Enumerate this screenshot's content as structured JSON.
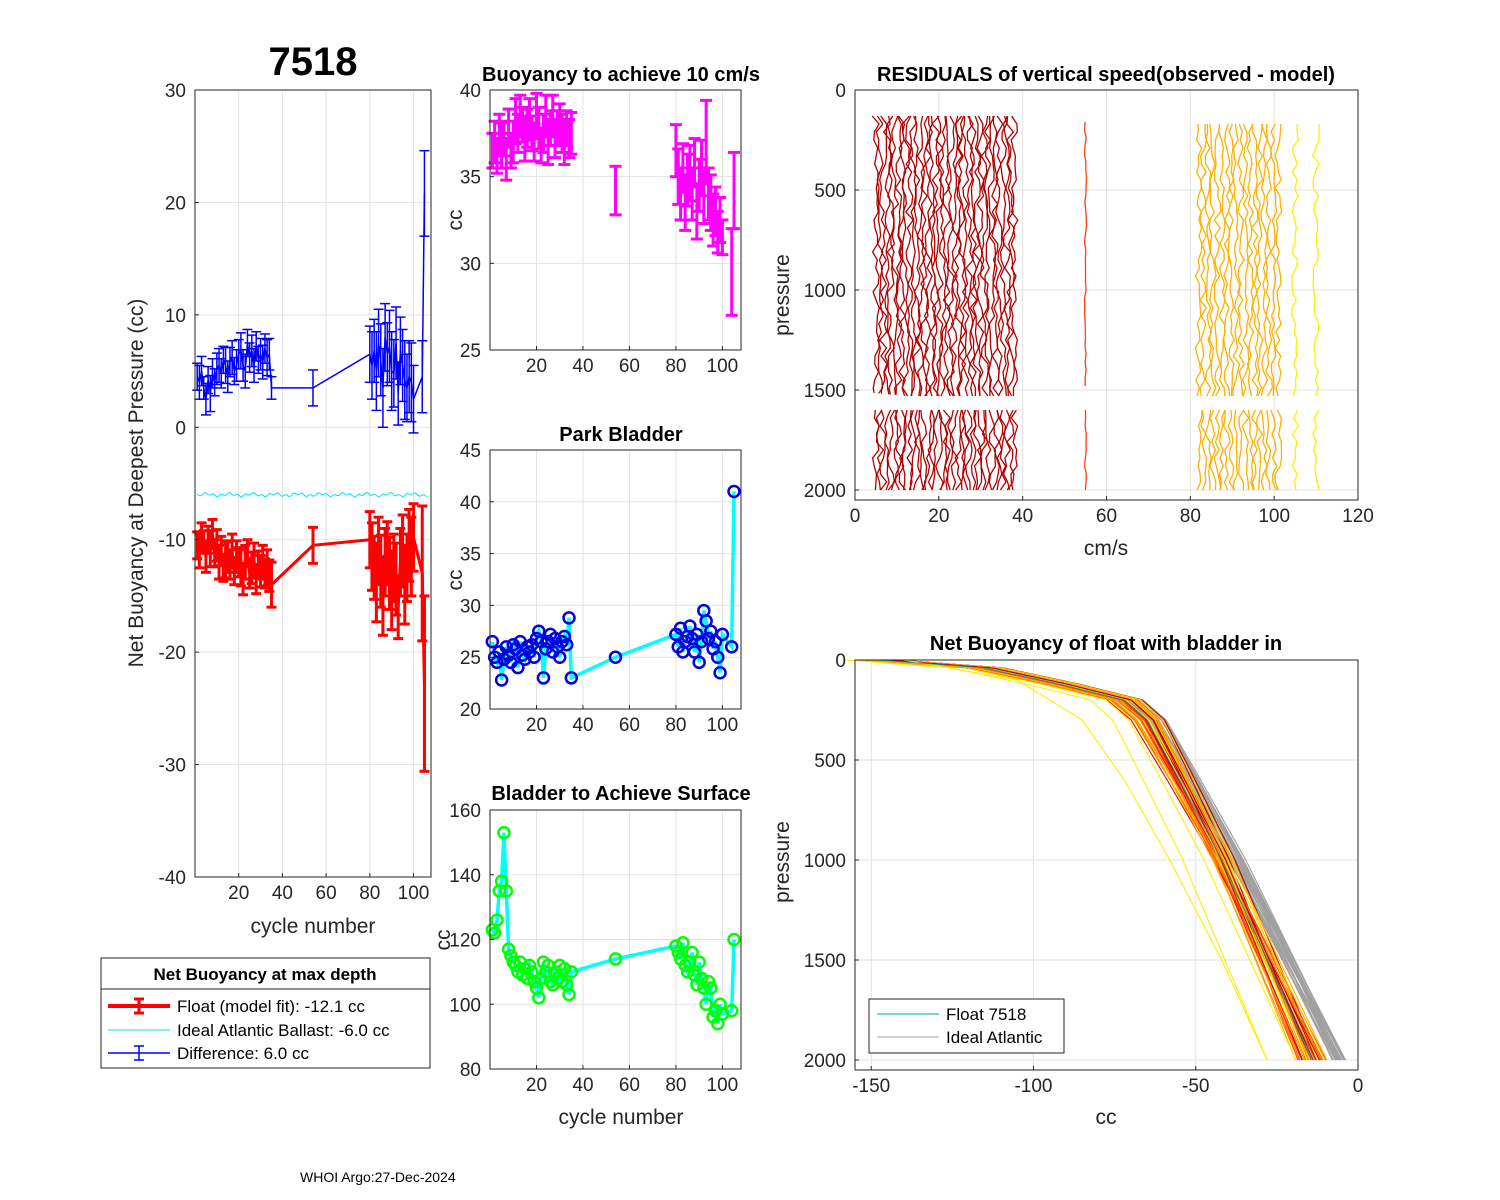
{
  "figure": {
    "float_id": "7518",
    "footer": "WHOI Argo:27-Dec-2024"
  },
  "colors": {
    "red": "#ff0000",
    "blue": "#0000ff",
    "cyan": "#00ffff",
    "magenta": "#ff00ff",
    "green": "#00ff00",
    "gray": "#a0a0a0"
  },
  "chart_data": [
    {
      "id": "net_buoyancy",
      "type": "line",
      "title": "7518",
      "xlabel": "cycle number",
      "ylabel": "Net Buoyancy at Deepest Pressure (cc)",
      "xlim": [
        0,
        108
      ],
      "ylim": [
        -40,
        30
      ],
      "xticks": [
        20,
        40,
        60,
        80,
        100
      ],
      "yticks": [
        -40,
        -30,
        -20,
        -10,
        0,
        10,
        20,
        30
      ],
      "cycles": [
        1,
        2,
        3,
        4,
        5,
        6,
        7,
        8,
        9,
        10,
        11,
        12,
        13,
        14,
        15,
        16,
        17,
        18,
        19,
        20,
        21,
        22,
        23,
        24,
        25,
        26,
        27,
        28,
        29,
        30,
        31,
        32,
        33,
        34,
        35,
        54,
        80,
        81,
        82,
        83,
        84,
        85,
        86,
        87,
        88,
        89,
        90,
        91,
        92,
        93,
        94,
        95,
        96,
        97,
        98,
        99,
        100,
        104,
        105
      ],
      "float_model_fit": [
        -10.5,
        -11.0,
        -9.8,
        -10.2,
        -11.5,
        -10.0,
        -10.8,
        -9.5,
        -11.2,
        -10.5,
        -12.0,
        -11.0,
        -12.5,
        -11.8,
        -11.5,
        -12.2,
        -11.0,
        -12.8,
        -11.5,
        -12.0,
        -12.5,
        -13.5,
        -12.0,
        -11.2,
        -13.0,
        -12.5,
        -11.8,
        -13.5,
        -12.2,
        -12.8,
        -12.0,
        -13.0,
        -12.5,
        -13.2,
        -14.0,
        -10.5,
        -10.0,
        -11.5,
        -12.5,
        -13.8,
        -11.0,
        -12.8,
        -15.0,
        -12.0,
        -11.2,
        -13.0,
        -14.5,
        -12.5,
        -13.5,
        -16.0,
        -12.0,
        -11.0,
        -14.0,
        -12.5,
        -10.5,
        -11.5,
        -9.8,
        -13.0,
        -22.8
      ],
      "float_error": [
        1.2,
        1.5,
        1.3,
        1.0,
        1.4,
        1.2,
        1.6,
        1.3,
        1.2,
        1.4,
        1.5,
        1.3,
        1.2,
        1.6,
        1.4,
        1.3,
        1.5,
        1.2,
        1.4,
        1.3,
        1.6,
        1.4,
        1.5,
        1.2,
        1.3,
        1.4,
        1.5,
        1.3,
        1.2,
        1.4,
        1.5,
        1.3,
        1.6,
        1.4,
        2.0,
        1.6,
        2.5,
        3.0,
        2.8,
        3.5,
        3.0,
        3.2,
        3.5,
        3.0,
        2.8,
        3.2,
        3.5,
        3.0,
        3.2,
        2.8,
        3.0,
        3.2,
        3.5,
        3.0,
        3.2,
        3.5,
        3.0,
        6.0,
        7.8
      ],
      "ideal_atlantic": -6.0,
      "difference": [
        4.5,
        4.0,
        5.0,
        3.5,
        2.5,
        4.2,
        3.0,
        4.8,
        4.0,
        5.2,
        5.5,
        4.8,
        6.0,
        5.5,
        4.5,
        5.8,
        6.2,
        5.0,
        5.5,
        6.5,
        6.8,
        5.5,
        5.0,
        7.5,
        6.2,
        6.8,
        5.5,
        7.2,
        6.0,
        6.5,
        5.8,
        7.0,
        6.2,
        6.5,
        3.5,
        3.5,
        6.5,
        5.5,
        6.8,
        5.0,
        7.5,
        6.0,
        3.5,
        8.0,
        6.5,
        7.2,
        5.0,
        4.8,
        7.5,
        3.0,
        6.8,
        5.5,
        4.2,
        3.5,
        4.5,
        4.0,
        2.5,
        4.5,
        20.8
      ],
      "difference_error": [
        1.2,
        1.5,
        1.3,
        1.0,
        1.4,
        1.2,
        1.6,
        1.3,
        1.2,
        1.4,
        1.5,
        1.3,
        1.2,
        1.6,
        1.4,
        1.3,
        1.5,
        1.2,
        1.4,
        1.3,
        1.6,
        1.4,
        1.5,
        1.2,
        1.3,
        1.4,
        1.5,
        1.3,
        1.2,
        1.4,
        1.5,
        1.3,
        1.6,
        1.4,
        1.0,
        1.6,
        2.5,
        3.0,
        2.8,
        3.5,
        3.0,
        3.2,
        3.5,
        3.0,
        2.8,
        3.2,
        3.5,
        3.0,
        3.2,
        2.8,
        3.0,
        3.2,
        3.5,
        3.0,
        3.2,
        3.5,
        3.0,
        3.2,
        3.8
      ],
      "legend": {
        "title": "Net Buoyancy at max depth",
        "entries": [
          "Float (model fit): -12.1 cc",
          "Ideal Atlantic Ballast:  -6.0 cc",
          "Difference:   6.0 cc"
        ]
      }
    },
    {
      "id": "buoyancy_10cms",
      "type": "scatter",
      "title": "Buoyancy to achieve 10 cm/s",
      "xlabel": "",
      "ylabel": "cc",
      "xlim": [
        0,
        108
      ],
      "ylim": [
        25,
        40
      ],
      "xticks": [
        20,
        40,
        60,
        80,
        100
      ],
      "yticks": [
        25,
        30,
        35,
        40
      ],
      "cycles": [
        1,
        2,
        3,
        4,
        5,
        6,
        7,
        8,
        9,
        10,
        11,
        12,
        13,
        14,
        15,
        16,
        17,
        18,
        19,
        20,
        21,
        22,
        23,
        24,
        25,
        26,
        27,
        28,
        29,
        30,
        31,
        32,
        33,
        34,
        35,
        54,
        80,
        81,
        82,
        83,
        84,
        85,
        86,
        87,
        88,
        89,
        90,
        91,
        92,
        93,
        94,
        95,
        96,
        97,
        98,
        99,
        100,
        104,
        105
      ],
      "values": [
        36.5,
        37.0,
        36.2,
        37.5,
        36.8,
        37.2,
        36.0,
        37.8,
        36.5,
        37.0,
        38.2,
        37.5,
        38.5,
        38.0,
        37.2,
        37.8,
        38.3,
        37.5,
        37.0,
        38.5,
        37.8,
        36.8,
        37.5,
        38.5,
        37.0,
        37.8,
        38.5,
        37.2,
        37.8,
        38.0,
        37.5,
        37.0,
        37.8,
        37.2,
        37.5,
        34.2,
        36.5,
        35.0,
        34.0,
        35.5,
        33.5,
        34.8,
        35.2,
        34.0,
        35.8,
        33.0,
        34.5,
        35.5,
        33.8,
        37.0,
        34.0,
        33.5,
        32.5,
        33.0,
        31.8,
        32.5,
        31.5,
        29.5,
        34.2
      ],
      "error": [
        1.0,
        1.2,
        1.0,
        1.1,
        1.3,
        1.0,
        1.2,
        1.1,
        1.0,
        1.2,
        1.3,
        1.1,
        1.2,
        1.0,
        1.3,
        1.1,
        1.2,
        1.0,
        1.1,
        1.3,
        1.2,
        1.0,
        1.1,
        1.2,
        1.3,
        1.0,
        1.2,
        1.1,
        1.0,
        1.2,
        1.1,
        1.3,
        1.0,
        1.1,
        1.2,
        1.4,
        1.5,
        1.6,
        1.5,
        1.4,
        1.6,
        1.5,
        1.6,
        1.5,
        1.4,
        1.6,
        1.5,
        1.6,
        1.5,
        2.4,
        1.5,
        1.6,
        1.5,
        1.4,
        1.2,
        1.3,
        1.0,
        2.5,
        2.2
      ]
    },
    {
      "id": "park_bladder",
      "type": "line",
      "title": "Park Bladder",
      "xlabel": "",
      "ylabel": "cc",
      "xlim": [
        0,
        108
      ],
      "ylim": [
        20,
        45
      ],
      "xticks": [
        20,
        40,
        60,
        80,
        100
      ],
      "yticks": [
        20,
        25,
        30,
        35,
        40,
        45
      ],
      "cycles": [
        1,
        2,
        3,
        4,
        5,
        6,
        7,
        8,
        9,
        10,
        11,
        12,
        13,
        14,
        15,
        16,
        17,
        18,
        19,
        20,
        21,
        22,
        23,
        24,
        25,
        26,
        27,
        28,
        29,
        30,
        31,
        32,
        33,
        34,
        35,
        54,
        80,
        81,
        82,
        83,
        84,
        85,
        86,
        87,
        88,
        89,
        90,
        91,
        92,
        93,
        94,
        95,
        96,
        97,
        98,
        99,
        100,
        104,
        105
      ],
      "values": [
        26.5,
        25.0,
        24.5,
        25.5,
        22.8,
        24.8,
        26.0,
        25.2,
        24.5,
        26.2,
        25.8,
        24.0,
        26.5,
        25.2,
        24.8,
        26.0,
        25.5,
        26.2,
        25.0,
        26.8,
        27.5,
        26.5,
        23.0,
        25.8,
        26.5,
        27.2,
        25.5,
        26.8,
        26.0,
        25.0,
        26.5,
        27.0,
        26.2,
        28.8,
        23.0,
        25.0,
        27.2,
        26.0,
        27.8,
        25.5,
        26.5,
        27.0,
        28.0,
        26.8,
        25.5,
        27.2,
        24.5,
        26.5,
        29.5,
        28.5,
        26.8,
        27.5,
        25.8,
        26.5,
        25.0,
        23.5,
        27.2,
        26.0,
        41.0
      ]
    },
    {
      "id": "bladder_surface",
      "type": "line",
      "title": "Bladder to Achieve Surface",
      "xlabel": "cycle number",
      "ylabel": "cc",
      "xlim": [
        0,
        108
      ],
      "ylim": [
        80,
        160
      ],
      "xticks": [
        20,
        40,
        60,
        80,
        100
      ],
      "yticks": [
        80,
        100,
        120,
        140,
        160
      ],
      "cycles": [
        1,
        2,
        3,
        4,
        5,
        6,
        7,
        8,
        9,
        10,
        11,
        12,
        13,
        14,
        15,
        16,
        17,
        18,
        19,
        20,
        21,
        22,
        23,
        24,
        25,
        26,
        27,
        28,
        29,
        30,
        31,
        32,
        33,
        34,
        35,
        54,
        80,
        81,
        82,
        83,
        84,
        85,
        86,
        87,
        88,
        89,
        90,
        91,
        92,
        93,
        94,
        95,
        96,
        97,
        98,
        99,
        100,
        104,
        105
      ],
      "values": [
        123,
        122,
        126,
        135,
        138,
        153,
        135,
        117,
        115,
        113,
        112,
        110,
        113,
        109,
        111,
        108,
        112,
        110,
        107,
        105,
        102,
        108,
        113,
        110,
        112,
        107,
        106,
        110,
        108,
        112,
        107,
        111,
        106,
        103,
        110,
        114,
        118,
        116,
        114,
        119,
        112,
        110,
        113,
        116,
        109,
        106,
        113,
        108,
        105,
        100,
        107,
        105,
        96,
        98,
        94,
        100,
        97,
        98,
        120
      ]
    },
    {
      "id": "residuals",
      "type": "line",
      "title": "RESIDUALS of vertical speed(observed - model)",
      "xlabel": "cm/s",
      "ylabel": "pressure",
      "xlim": [
        0,
        120
      ],
      "ylim": [
        0,
        2050
      ],
      "y_reversed": true,
      "xticks": [
        0,
        20,
        40,
        60,
        80,
        100,
        120
      ],
      "yticks": [
        0,
        500,
        1000,
        1500,
        2000
      ],
      "note": "profiles offset horizontally by cycle; observed residual traces from 150 to 2000 dbar",
      "groups": [
        {
          "range": [
            5,
            38
          ],
          "count": 38,
          "color": "#b00000"
        },
        {
          "range": [
            55,
            56
          ],
          "count": 1,
          "color": "#ff4010"
        },
        {
          "range": [
            82,
            101
          ],
          "count": 18,
          "color": "#ffb000"
        },
        {
          "range": [
            105,
            110
          ],
          "count": 2,
          "color": "#ffee00"
        }
      ]
    },
    {
      "id": "net_buoyancy_profile",
      "type": "line",
      "title": "Net Buoyancy of float with bladder in",
      "xlabel": "cc",
      "ylabel": "pressure",
      "xlim": [
        -155,
        0
      ],
      "ylim": [
        0,
        2050
      ],
      "y_reversed": true,
      "xticks": [
        -150,
        -100,
        -50,
        0
      ],
      "yticks": [
        0,
        500,
        1000,
        1500,
        2000
      ],
      "profile_template": [
        {
          "p": 0,
          "cc": -148
        },
        {
          "p": 40,
          "cc": -115
        },
        {
          "p": 120,
          "cc": -92
        },
        {
          "p": 200,
          "cc": -72
        },
        {
          "p": 300,
          "cc": -65
        },
        {
          "p": 600,
          "cc": -55
        },
        {
          "p": 1000,
          "cc": -42
        },
        {
          "p": 1500,
          "cc": -28
        },
        {
          "p": 2000,
          "cc": -14
        }
      ],
      "legend": {
        "entries": [
          "Float 7518",
          "Ideal Atlantic"
        ]
      }
    }
  ]
}
